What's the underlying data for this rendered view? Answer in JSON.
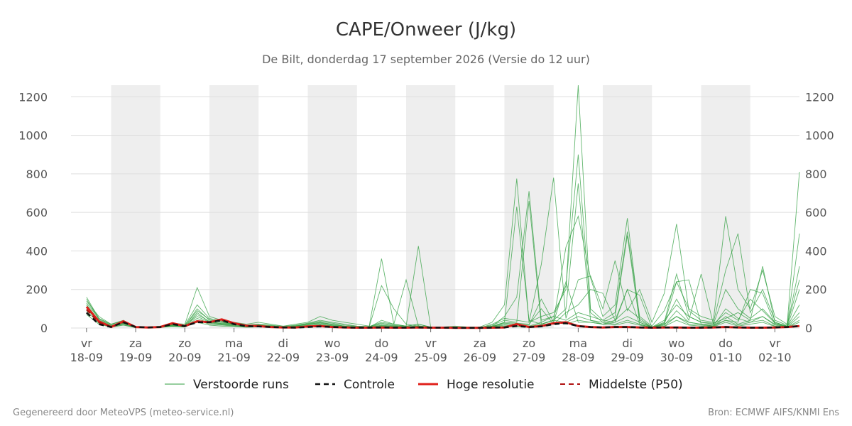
{
  "header": {
    "title": "CAPE/Onweer (J/kg)",
    "subtitle": "De Bilt, donderdag 17 september 2026 (Versie do 12 uur)"
  },
  "footer": {
    "left": "Gegenereerd door MeteoVPS (meteo-service.nl)",
    "right": "Bron: ECMWF AIFS/KNMI Ens"
  },
  "colors": {
    "ensemble": "#2e9e3e",
    "control": "#111111",
    "hires": "#e0201b",
    "median": "#b01010",
    "band": "#eeeeee",
    "grid": "#dddddd"
  },
  "chart_data": {
    "type": "line",
    "ylim": [
      0,
      1260
    ],
    "yticks": [
      0,
      200,
      400,
      600,
      800,
      1000,
      1200
    ],
    "xlim_days": [
      17.8,
      32.5
    ],
    "xticks": [
      {
        "day": "vr",
        "date": "18-09"
      },
      {
        "day": "za",
        "date": "19-09"
      },
      {
        "day": "zo",
        "date": "20-09"
      },
      {
        "day": "ma",
        "date": "21-09"
      },
      {
        "day": "di",
        "date": "22-09"
      },
      {
        "day": "wo",
        "date": "23-09"
      },
      {
        "day": "do",
        "date": "24-09"
      },
      {
        "day": "vr",
        "date": "25-09"
      },
      {
        "day": "za",
        "date": "26-09"
      },
      {
        "day": "zo",
        "date": "27-09"
      },
      {
        "day": "ma",
        "date": "28-09"
      },
      {
        "day": "di",
        "date": "29-09"
      },
      {
        "day": "wo",
        "date": "30-09"
      },
      {
        "day": "do",
        "date": "01-10"
      },
      {
        "day": "vr",
        "date": "02-10"
      }
    ],
    "legend": [
      {
        "key": "ensemble",
        "label": "Verstoorde runs",
        "style": "thin"
      },
      {
        "key": "control",
        "label": "Controle",
        "style": "dashed"
      },
      {
        "key": "hires",
        "label": "Hoge resolutie",
        "style": "solid"
      },
      {
        "key": "median",
        "label": "Middelste (P50)",
        "style": "dashed"
      }
    ],
    "legend_position": "bottom",
    "grid": true,
    "x_times": [
      18.0,
      18.25,
      18.5,
      18.75,
      19.0,
      19.25,
      19.5,
      19.75,
      20.0,
      20.25,
      20.5,
      20.75,
      21.0,
      21.25,
      21.5,
      21.75,
      22.0,
      22.25,
      22.5,
      22.75,
      23.0,
      23.25,
      23.5,
      23.75,
      24.0,
      24.25,
      24.5,
      24.75,
      25.0,
      25.25,
      25.5,
      25.75,
      26.0,
      26.25,
      26.5,
      26.75,
      27.0,
      27.25,
      27.5,
      27.75,
      28.0,
      28.25,
      28.5,
      28.75,
      29.0,
      29.25,
      29.5,
      29.75,
      30.0,
      30.25,
      30.5,
      30.75,
      31.0,
      31.25,
      31.5,
      31.75,
      32.0,
      32.25,
      32.5
    ],
    "series_control": [
      80,
      20,
      5,
      30,
      5,
      3,
      5,
      20,
      10,
      30,
      30,
      40,
      20,
      10,
      8,
      5,
      3,
      2,
      5,
      8,
      5,
      3,
      2,
      2,
      3,
      2,
      2,
      3,
      2,
      2,
      1,
      1,
      1,
      2,
      3,
      10,
      5,
      8,
      20,
      25,
      10,
      5,
      3,
      5,
      5,
      3,
      2,
      3,
      3,
      2,
      2,
      3,
      5,
      3,
      2,
      2,
      3,
      5,
      10
    ],
    "series_hires": [
      110,
      35,
      5,
      35,
      5,
      3,
      5,
      25,
      10,
      35,
      30,
      45,
      25,
      12,
      10,
      5,
      3,
      3,
      8,
      10,
      5,
      3,
      2,
      2,
      3,
      2,
      2,
      3,
      2,
      2,
      1,
      1,
      1,
      2,
      3,
      20,
      5,
      10,
      25,
      30,
      10,
      5,
      3,
      5,
      5,
      3,
      2,
      3,
      3,
      2,
      2,
      3,
      5,
      3,
      2,
      2,
      3,
      5,
      10
    ],
    "series_median": [
      95,
      30,
      5,
      30,
      5,
      3,
      5,
      22,
      10,
      32,
      30,
      40,
      22,
      10,
      8,
      5,
      3,
      2,
      6,
      8,
      5,
      3,
      2,
      2,
      3,
      2,
      2,
      3,
      2,
      2,
      1,
      1,
      1,
      2,
      3,
      15,
      5,
      8,
      22,
      28,
      10,
      5,
      3,
      5,
      5,
      3,
      2,
      3,
      3,
      2,
      2,
      3,
      5,
      3,
      2,
      2,
      3,
      5,
      10
    ],
    "series_ensemble": [
      [
        160,
        50,
        20,
        40,
        5,
        3,
        10,
        25,
        20,
        210,
        60,
        40,
        30,
        20,
        30,
        20,
        10,
        20,
        30,
        60,
        40,
        30,
        20,
        10,
        360,
        20,
        10,
        20,
        5,
        5,
        10,
        5,
        5,
        30,
        120,
        775,
        30,
        60,
        80,
        200,
        1260,
        100,
        40,
        80,
        500,
        60,
        10,
        90,
        240,
        100,
        60,
        40,
        580,
        200,
        100,
        300,
        60,
        20,
        810
      ],
      [
        120,
        40,
        10,
        30,
        3,
        2,
        5,
        15,
        10,
        100,
        40,
        30,
        20,
        10,
        15,
        10,
        5,
        10,
        20,
        30,
        20,
        10,
        5,
        5,
        220,
        100,
        20,
        10,
        5,
        3,
        5,
        2,
        2,
        10,
        60,
        160,
        710,
        40,
        60,
        220,
        900,
        80,
        30,
        60,
        480,
        30,
        5,
        40,
        120,
        60,
        30,
        20,
        200,
        100,
        50,
        100,
        30,
        10,
        320
      ],
      [
        100,
        30,
        5,
        25,
        3,
        2,
        5,
        10,
        5,
        80,
        30,
        20,
        15,
        8,
        10,
        5,
        3,
        5,
        10,
        20,
        10,
        5,
        3,
        3,
        40,
        20,
        250,
        10,
        3,
        2,
        3,
        1,
        1,
        5,
        30,
        630,
        40,
        20,
        40,
        100,
        750,
        40,
        20,
        40,
        200,
        20,
        3,
        20,
        60,
        30,
        20,
        10,
        100,
        50,
        30,
        60,
        20,
        5,
        200
      ],
      [
        140,
        60,
        20,
        35,
        5,
        3,
        8,
        20,
        15,
        120,
        50,
        35,
        25,
        15,
        20,
        15,
        8,
        15,
        25,
        40,
        30,
        20,
        10,
        8,
        30,
        20,
        10,
        425,
        5,
        3,
        5,
        2,
        2,
        20,
        50,
        40,
        30,
        330,
        780,
        50,
        250,
        270,
        100,
        350,
        90,
        200,
        30,
        180,
        540,
        90,
        40,
        30,
        300,
        490,
        80,
        200,
        40,
        15,
        250
      ],
      [
        130,
        50,
        15,
        30,
        4,
        2,
        6,
        18,
        12,
        90,
        45,
        30,
        22,
        12,
        18,
        12,
        6,
        12,
        22,
        35,
        25,
        15,
        8,
        6,
        25,
        15,
        8,
        20,
        4,
        2,
        4,
        1,
        1,
        15,
        40,
        30,
        660,
        20,
        40,
        420,
        580,
        260,
        60,
        120,
        570,
        40,
        4,
        30,
        280,
        60,
        30,
        25,
        50,
        80,
        40,
        320,
        30,
        10,
        490
      ],
      [
        110,
        35,
        8,
        22,
        3,
        1,
        4,
        12,
        8,
        70,
        35,
        22,
        18,
        8,
        12,
        8,
        4,
        8,
        15,
        25,
        15,
        8,
        4,
        4,
        15,
        10,
        5,
        10,
        3,
        1,
        3,
        1,
        1,
        8,
        25,
        20,
        15,
        150,
        30,
        240,
        30,
        30,
        20,
        30,
        200,
        170,
        3,
        20,
        240,
        250,
        20,
        15,
        40,
        30,
        200,
        180,
        20,
        8,
        120
      ],
      [
        150,
        45,
        12,
        28,
        4,
        2,
        7,
        16,
        10,
        60,
        30,
        25,
        20,
        10,
        14,
        10,
        5,
        10,
        18,
        28,
        18,
        10,
        6,
        5,
        20,
        12,
        6,
        12,
        4,
        2,
        4,
        1,
        1,
        10,
        30,
        25,
        20,
        100,
        20,
        80,
        120,
        200,
        180,
        40,
        100,
        50,
        4,
        25,
        150,
        40,
        280,
        20,
        80,
        40,
        150,
        90,
        25,
        8,
        80
      ],
      [
        90,
        25,
        5,
        18,
        2,
        1,
        3,
        10,
        6,
        50,
        25,
        18,
        12,
        6,
        10,
        6,
        3,
        6,
        12,
        18,
        12,
        6,
        3,
        3,
        12,
        8,
        4,
        8,
        2,
        1,
        2,
        1,
        1,
        6,
        20,
        15,
        10,
        30,
        60,
        40,
        80,
        60,
        40,
        30,
        60,
        30,
        3,
        15,
        90,
        30,
        20,
        10,
        60,
        20,
        40,
        60,
        15,
        5,
        60
      ],
      [
        120,
        40,
        10,
        26,
        3,
        2,
        6,
        14,
        8,
        40,
        20,
        15,
        10,
        5,
        8,
        5,
        3,
        5,
        10,
        15,
        10,
        5,
        3,
        3,
        10,
        6,
        3,
        6,
        3,
        1,
        3,
        1,
        1,
        5,
        15,
        10,
        8,
        20,
        40,
        30,
        60,
        40,
        30,
        20,
        40,
        20,
        2,
        10,
        60,
        20,
        15,
        8,
        40,
        15,
        30,
        40,
        10,
        4,
        40
      ],
      [
        70,
        20,
        4,
        15,
        2,
        1,
        3,
        8,
        5,
        30,
        15,
        10,
        8,
        4,
        6,
        4,
        2,
        4,
        8,
        12,
        8,
        4,
        2,
        2,
        8,
        5,
        2,
        5,
        2,
        1,
        2,
        1,
        1,
        4,
        10,
        8,
        6,
        15,
        30,
        20,
        40,
        30,
        20,
        15,
        30,
        15,
        2,
        8,
        40,
        15,
        10,
        6,
        30,
        10,
        20,
        30,
        8,
        3,
        30
      ]
    ]
  }
}
